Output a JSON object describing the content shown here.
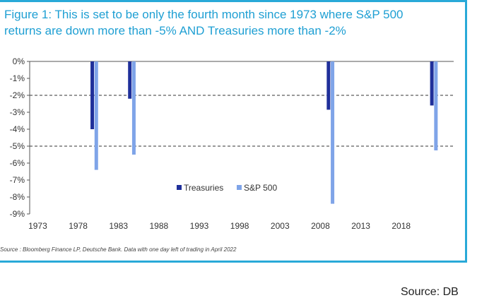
{
  "colors": {
    "frame": "#29a9d8",
    "title": "#1e9fd3",
    "treasuries": "#1f2f9a",
    "sp500": "#7fa4e8",
    "refline": "#333333"
  },
  "chart_data": {
    "type": "bar",
    "title_lines": [
      "Figure 1: This is set to be only the fourth month since 1973 where S&P 500",
      "returns are down more than -5% AND Treasuries more than -2%"
    ],
    "xlabel": "",
    "ylabel": "",
    "xlim": [
      1972,
      2024.5
    ],
    "ylim": [
      -9,
      0
    ],
    "x_ticks": [
      1973,
      1978,
      1983,
      1988,
      1993,
      1998,
      2003,
      2008,
      2013,
      2018
    ],
    "x_tick_labels": [
      "1973",
      "1978",
      "1983",
      "1988",
      "1993",
      "1998",
      "2003",
      "2008",
      "2013",
      "2018"
    ],
    "y_ticks": [
      0,
      -1,
      -2,
      -3,
      -4,
      -5,
      -6,
      -7,
      -8,
      -9
    ],
    "y_tick_labels": [
      "0%",
      "-1%",
      "-2%",
      "-3%",
      "-4%",
      "-5%",
      "-6%",
      "-7%",
      "-8%",
      "-9%"
    ],
    "reference_lines": [
      -2,
      -5
    ],
    "legend_position": "lower-middle",
    "series": [
      {
        "name": "Treasuries",
        "color_key": "treasuries",
        "points": [
          {
            "x": 1979.75,
            "value": -4.0
          },
          {
            "x": 1984.4,
            "value": -2.2
          },
          {
            "x": 2009.0,
            "value": -2.85
          },
          {
            "x": 2021.8,
            "value": -2.6
          }
        ]
      },
      {
        "name": "S&P 500",
        "color_key": "sp500",
        "points": [
          {
            "x": 1980.25,
            "value": -6.4
          },
          {
            "x": 1984.9,
            "value": -5.5
          },
          {
            "x": 2009.5,
            "value": -8.4
          },
          {
            "x": 2022.3,
            "value": -5.25
          }
        ]
      }
    ]
  },
  "footnote": "Source : Bloomberg Finance LP, Deutsche Bank. Data with one day left of trading in April 2022",
  "credit": "Source: DB"
}
